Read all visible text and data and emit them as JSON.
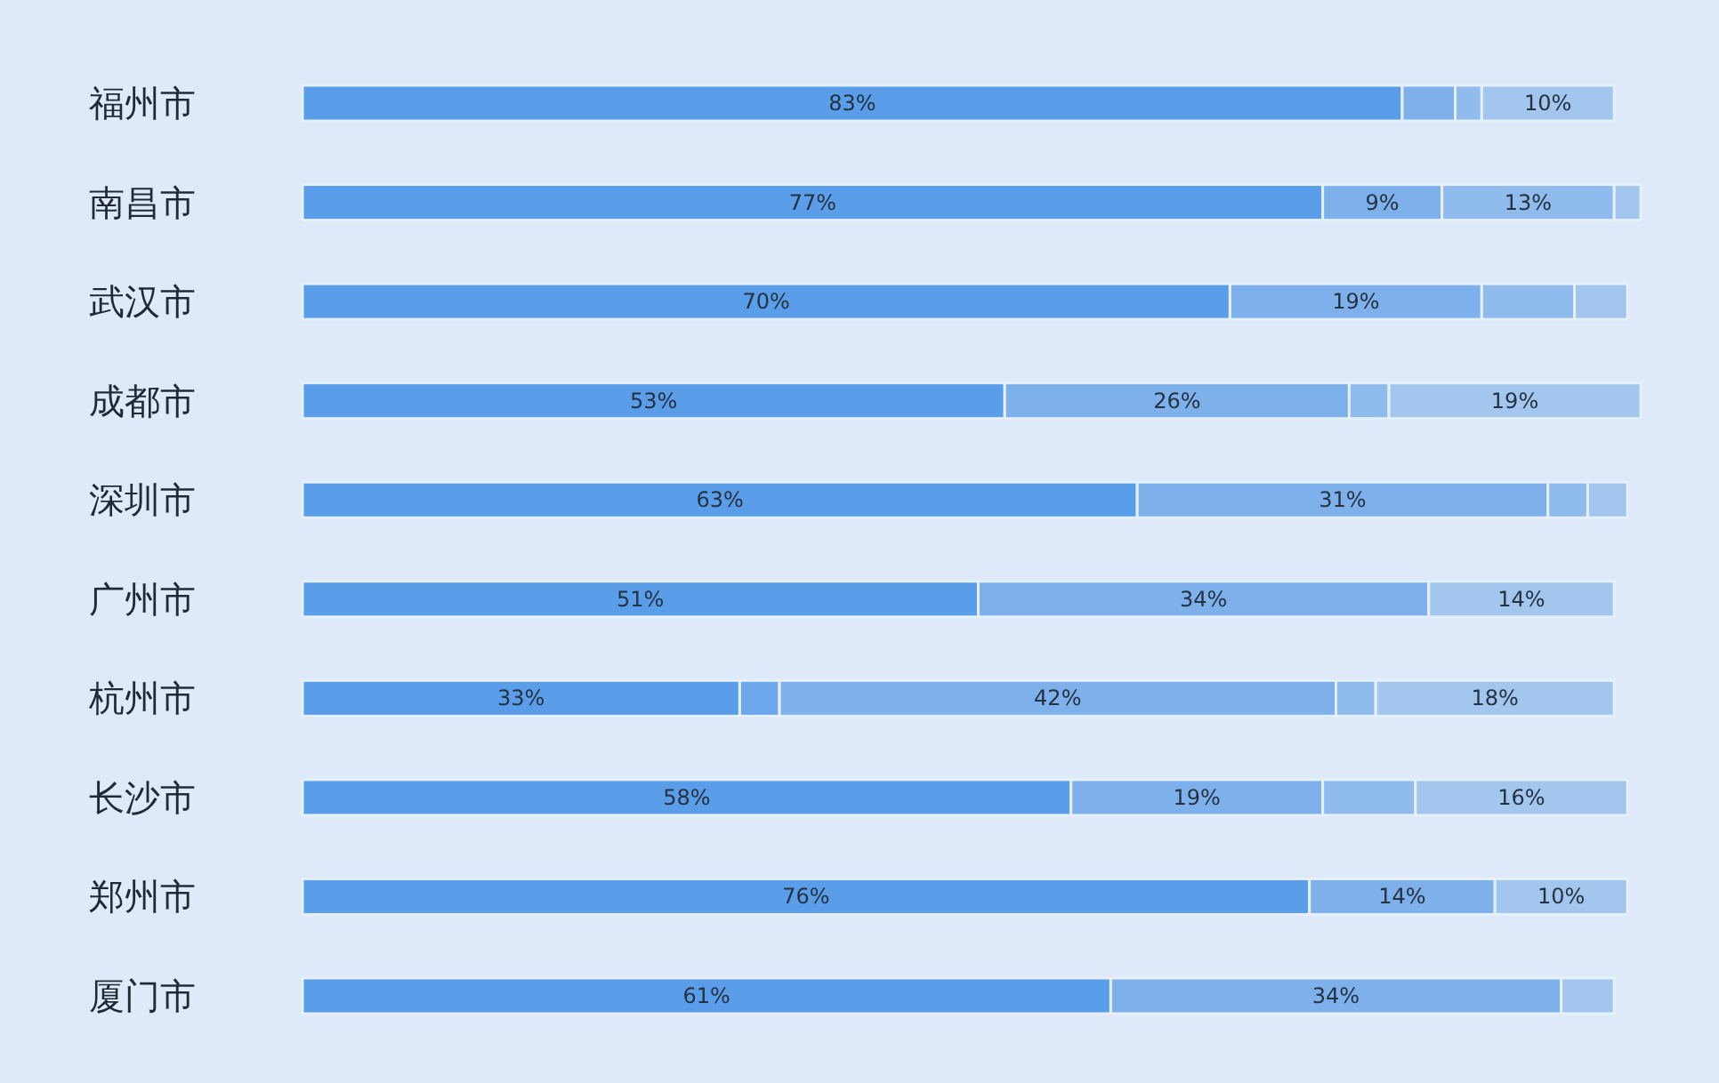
{
  "chart_data": {
    "type": "bar",
    "orientation": "horizontal",
    "stacked": true,
    "categories": [
      "福州市",
      "南昌市",
      "武汉市",
      "成都市",
      "深圳市",
      "广州市",
      "杭州市",
      "长沙市",
      "郑州市",
      "厦门市"
    ],
    "series": [
      {
        "color": "#5a9de9",
        "values": [
          83,
          77,
          70,
          53,
          63,
          51,
          33,
          58,
          76,
          61
        ],
        "value_labels": [
          "83%",
          "77%",
          "70%",
          "53%",
          "63%",
          "51%",
          "33%",
          "58%",
          "76%",
          "61%"
        ]
      },
      {
        "color": "#6ba7ea",
        "values": [
          0,
          0,
          0,
          0,
          0,
          0,
          3,
          0,
          0,
          0
        ],
        "value_labels": [
          null,
          null,
          null,
          null,
          null,
          null,
          null,
          null,
          null,
          null
        ]
      },
      {
        "color": "#7eb1ec",
        "values": [
          4,
          9,
          19,
          26,
          31,
          34,
          42,
          19,
          14,
          34
        ],
        "value_labels": [
          null,
          "9%",
          "19%",
          "26%",
          "31%",
          "34%",
          "42%",
          "19%",
          "14%",
          "34%"
        ]
      },
      {
        "color": "#8fbbed",
        "values": [
          2,
          13,
          7,
          3,
          3,
          0,
          3,
          7,
          0,
          0
        ],
        "value_labels": [
          null,
          "13%",
          null,
          null,
          null,
          null,
          null,
          null,
          null,
          null
        ]
      },
      {
        "color": "#a3c6ef",
        "values": [
          10,
          2,
          4,
          19,
          3,
          14,
          18,
          16,
          10,
          4
        ],
        "value_labels": [
          "10%",
          null,
          null,
          "19%",
          null,
          "14%",
          "18%",
          "16%",
          "10%",
          null
        ]
      }
    ]
  }
}
